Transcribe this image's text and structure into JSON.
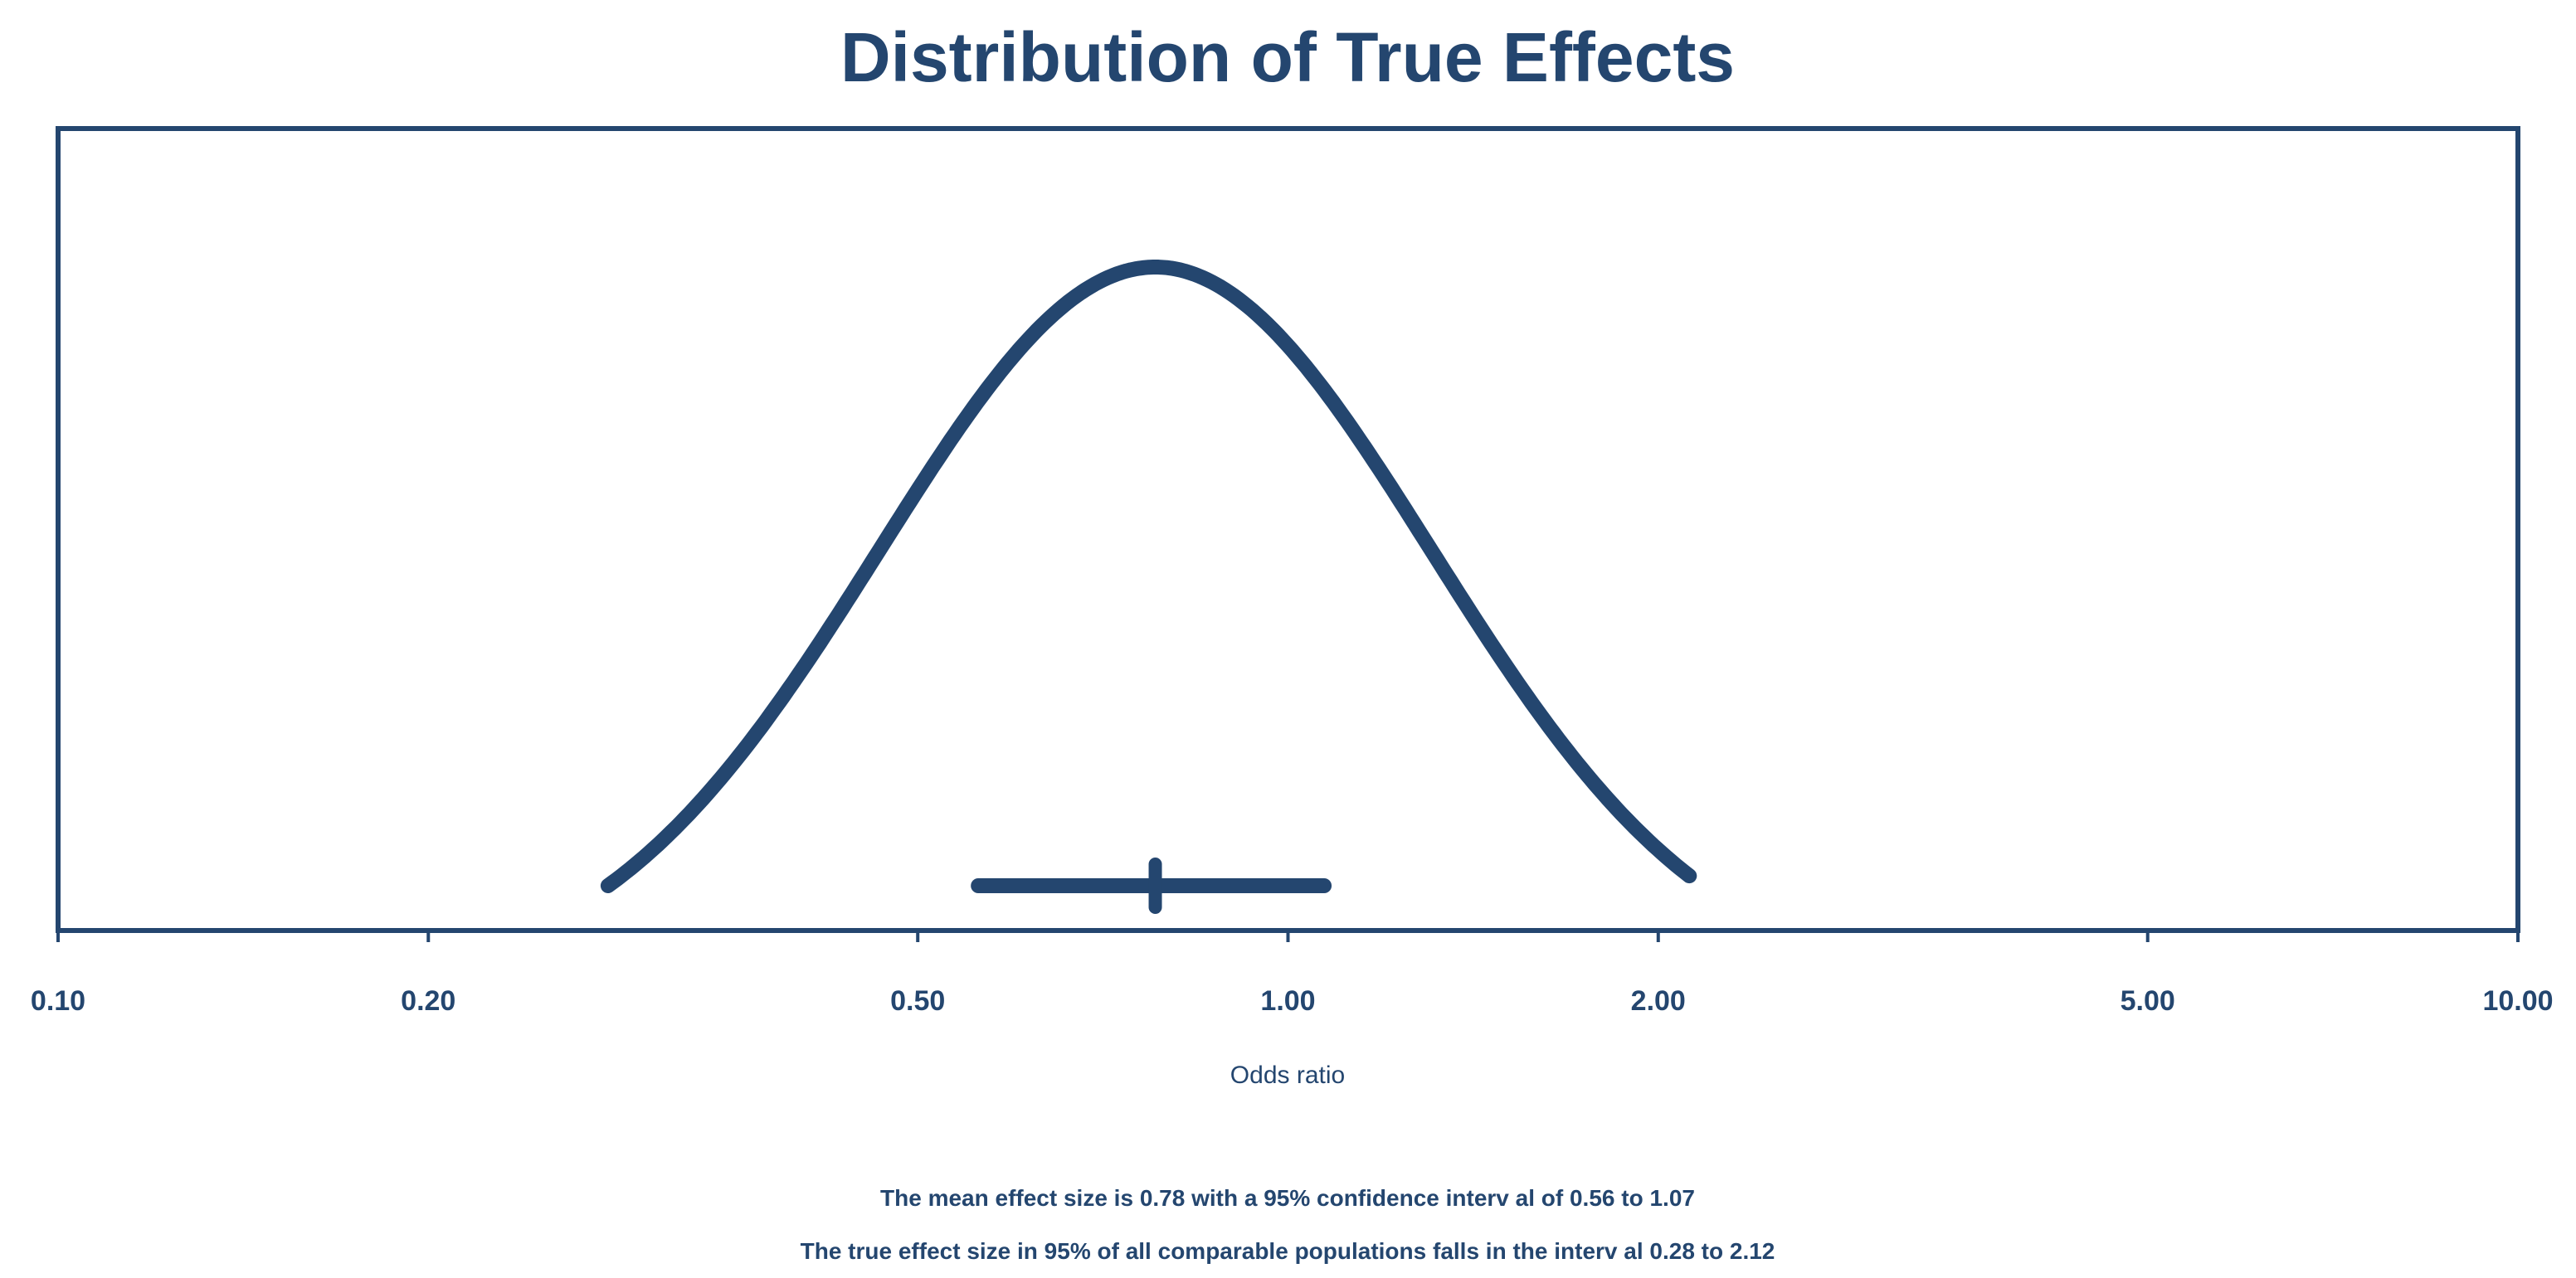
{
  "chart_data": {
    "type": "line",
    "title": "Distribution of True Effects",
    "xlabel": "Odds ratio",
    "ylabel": "",
    "x_scale": "log",
    "xlim": [
      0.1,
      10.0
    ],
    "x_ticks": [
      0.1,
      0.2,
      0.5,
      1.0,
      2.0,
      5.0,
      10.0
    ],
    "x_tick_labels": [
      "0.10",
      "0.20",
      "0.50",
      "1.00",
      "2.00",
      "5.00",
      "10.00"
    ],
    "grid": false,
    "series": [
      {
        "name": "Distribution of true effects",
        "kind": "normal-on-log-scale",
        "center": 0.78,
        "interval_95": [
          0.28,
          2.12
        ]
      }
    ],
    "mean_effect": {
      "value": 0.78,
      "ci_lower": 0.56,
      "ci_upper": 1.07
    },
    "prediction_interval": {
      "lower": 0.28,
      "upper": 2.12
    },
    "notes": [
      "The mean effect size is 0.78 with a 95%  confidence interv al of 0.56 to 1.07",
      "The true effect size in 95%  of all comparable populations falls in the interv al 0.28 to 2.12"
    ],
    "color": "#24466F"
  }
}
